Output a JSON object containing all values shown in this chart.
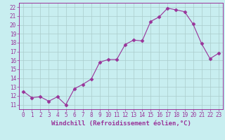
{
  "x": [
    0,
    1,
    2,
    3,
    4,
    5,
    6,
    7,
    8,
    9,
    10,
    11,
    12,
    13,
    14,
    15,
    16,
    17,
    18,
    19,
    20,
    21,
    22,
    23
  ],
  "y": [
    12.5,
    11.8,
    11.9,
    11.4,
    11.9,
    11.0,
    12.8,
    13.3,
    13.9,
    15.8,
    16.1,
    16.1,
    17.8,
    18.3,
    18.2,
    20.4,
    20.9,
    21.9,
    21.7,
    21.5,
    20.1,
    17.9,
    16.2,
    16.8
  ],
  "line_color": "#993399",
  "marker": "D",
  "marker_size": 2.5,
  "bg_color": "#c8eef0",
  "grid_color": "#aacccc",
  "xlabel": "Windchill (Refroidissement éolien,°C)",
  "ylabel_ticks": [
    11,
    12,
    13,
    14,
    15,
    16,
    17,
    18,
    19,
    20,
    21,
    22
  ],
  "ylim": [
    10.5,
    22.5
  ],
  "xlim": [
    -0.5,
    23.5
  ],
  "xticks": [
    0,
    1,
    2,
    3,
    4,
    5,
    6,
    7,
    8,
    9,
    10,
    11,
    12,
    13,
    14,
    15,
    16,
    17,
    18,
    19,
    20,
    21,
    22,
    23
  ],
  "tick_color": "#993399",
  "label_color": "#993399",
  "tick_fontsize": 5.5,
  "xlabel_fontsize": 6.5
}
